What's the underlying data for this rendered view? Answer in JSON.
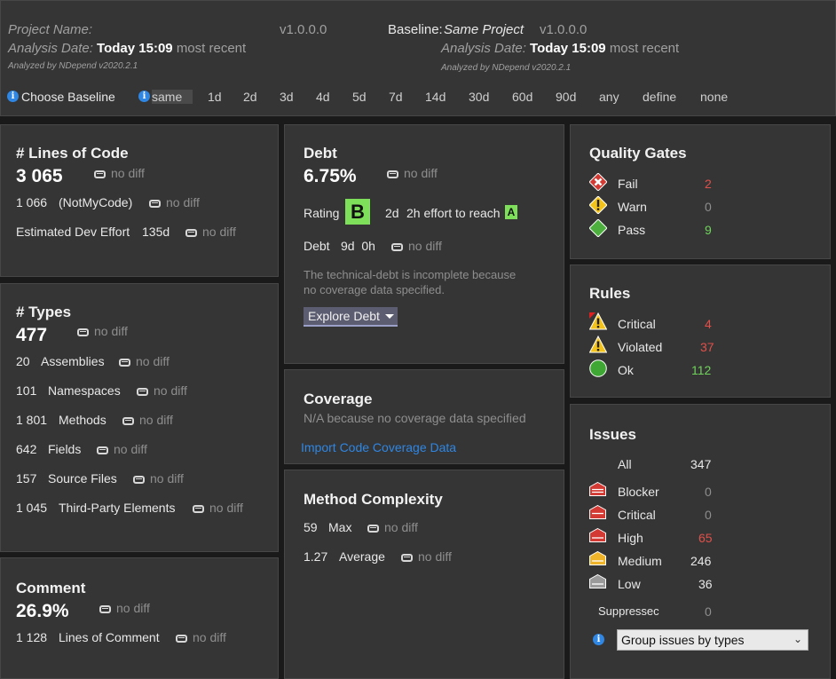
{
  "header": {
    "project_label": "Project Name:",
    "project_version": "v1.0.0.0",
    "baseline_label": "Baseline:",
    "baseline_name": "Same Project",
    "baseline_version": "v1.0.0.0",
    "analysis_date_label": "Analysis Date:",
    "analysis_date_value": "Today 15:09",
    "analysis_date_suffix": "most recent",
    "analyzed_by": "Analyzed by NDepend v2020.2.1",
    "baseline_analysis_date_label": "Analysis Date:",
    "baseline_analysis_date_value": "Today 15:09",
    "baseline_analysis_date_suffix": "most recent",
    "baseline_analyzed_by": "Analyzed by NDepend v2020.2.1"
  },
  "baseline_bar": {
    "choose_label": "Choose Baseline",
    "options": [
      "same",
      "1d",
      "2d",
      "3d",
      "4d",
      "5d",
      "7d",
      "14d",
      "30d",
      "60d",
      "90d",
      "any",
      "define",
      "none"
    ]
  },
  "no_diff": "no diff",
  "loc": {
    "title": "# Lines of Code",
    "value": "3 065",
    "notmycode_value": "1 066",
    "notmycode_label": "(NotMyCode)",
    "effort_label": "Estimated Dev Effort",
    "effort_value": "135d"
  },
  "types": {
    "title": "# Types",
    "value": "477",
    "rows": [
      {
        "value": "20",
        "label": "Assemblies"
      },
      {
        "value": "101",
        "label": "Namespaces"
      },
      {
        "value": "1 801",
        "label": "Methods"
      },
      {
        "value": "642",
        "label": "Fields"
      },
      {
        "value": "157",
        "label": "Source Files"
      },
      {
        "value": "1 045",
        "label": "Third-Party Elements"
      }
    ]
  },
  "comment": {
    "title": "Comment",
    "value": "26.9%",
    "lines_value": "1 128",
    "lines_label": "Lines of Comment"
  },
  "debt": {
    "title": "Debt",
    "value": "6.75%",
    "rating_label": "Rating",
    "rating": "B",
    "effort_value": "2d",
    "effort_text": "2h effort to reach",
    "target_rating": "A",
    "debt_label": "Debt",
    "debt_value": "9d  0h",
    "note_line1": "The technical-debt is incomplete because",
    "note_line2": "no coverage data specified.",
    "explore_label": "Explore Debt"
  },
  "coverage": {
    "title": "Coverage",
    "note": "N/A because no coverage data specified",
    "import_link": "Import Code Coverage Data"
  },
  "complexity": {
    "title": "Method Complexity",
    "max_value": "59",
    "max_label": "Max",
    "avg_value": "1.27",
    "avg_label": "Average"
  },
  "quality_gates": {
    "title": "Quality Gates",
    "fail_label": "Fail",
    "fail_count": "2",
    "warn_label": "Warn",
    "warn_count": "0",
    "pass_label": "Pass",
    "pass_count": "9"
  },
  "rules": {
    "title": "Rules",
    "critical_label": "Critical",
    "critical_count": "4",
    "violated_label": "Violated",
    "violated_count": "37",
    "ok_label": "Ok",
    "ok_count": "112"
  },
  "issues": {
    "title": "Issues",
    "all_label": "All",
    "all_count": "347",
    "blocker_label": "Blocker",
    "blocker_count": "0",
    "critical_label": "Critical",
    "critical_count": "0",
    "high_label": "High",
    "high_count": "65",
    "medium_label": "Medium",
    "medium_count": "246",
    "low_label": "Low",
    "low_count": "36",
    "suppressed_label": "Suppressec",
    "suppressed_count": "0",
    "group_select": "Group issues by types"
  },
  "colors": {
    "background": "#1a1a1a",
    "panel": "#353535",
    "link_blue": "#2f86e3",
    "red": "#e0504a",
    "green": "#6fd35a",
    "rating_green": "#7ee05a"
  }
}
